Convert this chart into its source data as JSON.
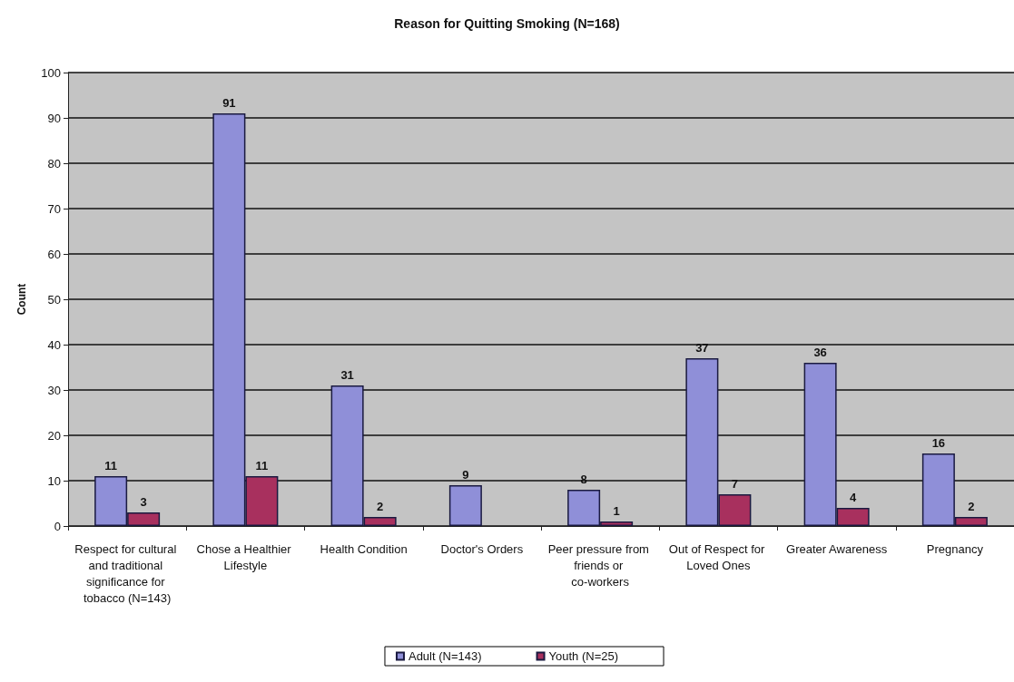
{
  "chart_data": {
    "type": "bar",
    "title": "Reason for Quitting Smoking (N=168)",
    "ylabel": "Count",
    "categories": [
      "Respect for cultural and traditional significance for tobacco (N=143)",
      "Chose a Healthier Lifestyle",
      "Health Condition",
      "Doctor's Orders",
      "Peer pressure from friends or co-workers",
      "Out of Respect for Loved Ones",
      "Greater Awareness",
      "Pregnancy"
    ],
    "series": [
      {
        "name": "Adult (N=143)",
        "color": "#8f8fd8",
        "values": [
          11,
          91,
          31,
          9,
          8,
          37,
          36,
          16
        ]
      },
      {
        "name": "Youth (N=25)",
        "color": "#a8305e",
        "values": [
          3,
          11,
          2,
          null,
          1,
          7,
          4,
          2
        ]
      }
    ],
    "ylim": [
      0,
      100
    ],
    "yticks": [
      0,
      10,
      20,
      30,
      40,
      50,
      60,
      70,
      80,
      90,
      100
    ],
    "grid": "y",
    "legend": "bottom",
    "data_labels": true
  }
}
